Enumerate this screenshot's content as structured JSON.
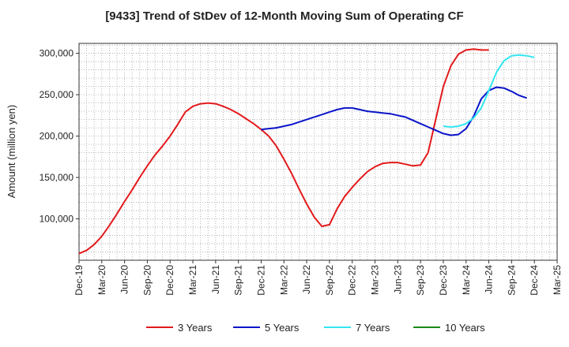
{
  "chart_data": {
    "type": "line",
    "title": "[9433]  Trend of StDev of 12-Month Moving Sum of Operating CF",
    "xlabel": "",
    "ylabel": "Amount (million yen)",
    "ylim": [
      50000,
      312000
    ],
    "yticks": [
      100000,
      150000,
      200000,
      250000,
      300000
    ],
    "ytick_labels": [
      "100,000",
      "150,000",
      "200,000",
      "250,000",
      "300,000"
    ],
    "xtick_labels": [
      "Dec-19",
      "Mar-20",
      "Jun-20",
      "Sep-20",
      "Dec-20",
      "Mar-21",
      "Jun-21",
      "Sep-21",
      "Dec-21",
      "Mar-22",
      "Jun-22",
      "Sep-22",
      "Dec-22",
      "Mar-23",
      "Jun-23",
      "Sep-23",
      "Dec-23",
      "Mar-24",
      "Jun-24",
      "Sep-24",
      "Dec-24",
      "Mar-25"
    ],
    "grid": true,
    "legend_position": "bottom",
    "series": [
      {
        "name": "3 Years",
        "color": "#e31a1c",
        "start_index": 0,
        "values": [
          58000,
          62000,
          69000,
          79000,
          92000,
          106000,
          121000,
          135000,
          150000,
          164000,
          177000,
          188000,
          200000,
          214000,
          229000,
          236000,
          239000,
          240000,
          239000,
          236000,
          232000,
          227000,
          221000,
          215000,
          208000,
          200000,
          188000,
          172000,
          155000,
          136000,
          118000,
          102000,
          91000,
          93000,
          112000,
          127000,
          138000,
          148000,
          157000,
          163000,
          167000,
          168000,
          168000,
          166000,
          164000,
          165000,
          180000,
          220000,
          260000,
          285000,
          299000,
          304000,
          305000,
          304000,
          304000
        ]
      },
      {
        "name": "5 Years",
        "color": "#0a14c8",
        "start_index": 24,
        "values": [
          208000,
          209000,
          210000,
          212000,
          214000,
          217000,
          220000,
          223000,
          226000,
          229000,
          232000,
          234000,
          234000,
          232000,
          230000,
          229000,
          228000,
          227000,
          225000,
          223000,
          219000,
          215000,
          211000,
          207000,
          203000,
          201000,
          202000,
          209000,
          224000,
          245000,
          255000,
          259000,
          258000,
          254000,
          249000,
          246000
        ]
      },
      {
        "name": "7 Years",
        "color": "#33e6f0",
        "start_index": 48,
        "values": [
          212000,
          211000,
          212000,
          215000,
          222000,
          234000,
          255000,
          277000,
          291000,
          297000,
          298000,
          297000,
          295000
        ]
      },
      {
        "name": "10 Years",
        "color": "#1a8a1a",
        "start_index": 0,
        "values": []
      }
    ]
  }
}
